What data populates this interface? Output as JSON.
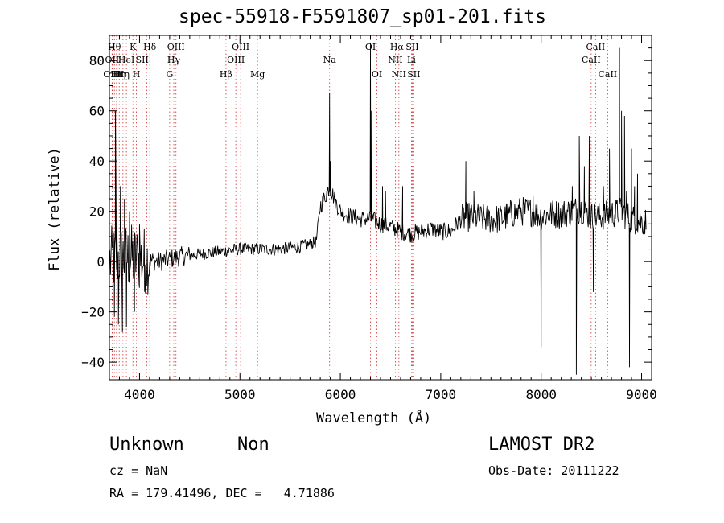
{
  "chart_data": {
    "type": "line",
    "title": "spec-55918-F5591807_sp01-201.fits",
    "xlabel": "Wavelength (Å)",
    "ylabel": "Flux (relative)",
    "xlim": [
      3700,
      9100
    ],
    "ylim": [
      -47,
      90
    ],
    "xticks": [
      "4000",
      "5000",
      "6000",
      "7000",
      "8000",
      "9000"
    ],
    "yticks": [
      "−40",
      "−20",
      "0",
      "20",
      "40",
      "60",
      "80"
    ],
    "grid": false,
    "lines": [
      {
        "w": 3727,
        "label": "OII",
        "row": 1
      },
      {
        "w": 3727,
        "label": "OIII",
        "row": 2
      },
      {
        "w": 3750,
        "label": "Hθ",
        "row": 0
      },
      {
        "w": 3771,
        "label": "Hι",
        "row": 2
      },
      {
        "w": 3798,
        "label": "Hη",
        "row": 2
      },
      {
        "w": 3835,
        "label": "Hη",
        "row": 2
      },
      {
        "w": 3869,
        "label": "HeI",
        "row": 1
      },
      {
        "w": 3934,
        "label": "K",
        "row": 0
      },
      {
        "w": 3969,
        "label": "H",
        "row": 2
      },
      {
        "w": 4026,
        "label": "SII",
        "row": 1
      },
      {
        "w": 4072,
        "label": "",
        "row": 1
      },
      {
        "w": 4102,
        "label": "Hδ",
        "row": 0
      },
      {
        "w": 4300,
        "label": "G",
        "row": 2
      },
      {
        "w": 4341,
        "label": "Hγ",
        "row": 1
      },
      {
        "w": 4363,
        "label": "OIII",
        "row": 0
      },
      {
        "w": 4861,
        "label": "Hβ",
        "row": 2
      },
      {
        "w": 4959,
        "label": "OIII",
        "row": 1
      },
      {
        "w": 5007,
        "label": "OIII",
        "row": 0
      },
      {
        "w": 5175,
        "label": "Mg",
        "row": 2
      },
      {
        "w": 5893,
        "label": "Na",
        "row": 1
      },
      {
        "w": 6300,
        "label": "OI",
        "row": 0
      },
      {
        "w": 6364,
        "label": "OI",
        "row": 2
      },
      {
        "w": 6548,
        "label": "NII",
        "row": 1
      },
      {
        "w": 6563,
        "label": "Hα",
        "row": 0
      },
      {
        "w": 6583,
        "label": "NII",
        "row": 2
      },
      {
        "w": 6708,
        "label": "Li",
        "row": 1
      },
      {
        "w": 6716,
        "label": "SII",
        "row": 0
      },
      {
        "w": 6731,
        "label": "SII",
        "row": 2
      },
      {
        "w": 8498,
        "label": "CaII",
        "row": 1
      },
      {
        "w": 8542,
        "label": "CaII",
        "row": 0
      },
      {
        "w": 8662,
        "label": "CaII",
        "row": 2
      }
    ],
    "spectrum_anchors": [
      [
        3700,
        0
      ],
      [
        3800,
        2
      ],
      [
        4000,
        1
      ],
      [
        4200,
        0
      ],
      [
        4400,
        2
      ],
      [
        4600,
        3
      ],
      [
        4800,
        4
      ],
      [
        5000,
        5
      ],
      [
        5200,
        5
      ],
      [
        5400,
        5
      ],
      [
        5600,
        6
      ],
      [
        5700,
        7
      ],
      [
        5760,
        8
      ],
      [
        5800,
        22
      ],
      [
        5850,
        26
      ],
      [
        5893,
        30
      ],
      [
        5950,
        24
      ],
      [
        6000,
        20
      ],
      [
        6100,
        18
      ],
      [
        6200,
        17
      ],
      [
        6300,
        17
      ],
      [
        6400,
        15
      ],
      [
        6500,
        14
      ],
      [
        6600,
        12
      ],
      [
        6700,
        11
      ],
      [
        6800,
        12
      ],
      [
        6900,
        13
      ],
      [
        7000,
        12
      ],
      [
        7100,
        12
      ],
      [
        7200,
        17
      ],
      [
        7300,
        18
      ],
      [
        7400,
        17
      ],
      [
        7500,
        17
      ],
      [
        7600,
        17
      ],
      [
        7700,
        19
      ],
      [
        7800,
        20
      ],
      [
        7900,
        20
      ],
      [
        8000,
        18
      ],
      [
        8100,
        19
      ],
      [
        8200,
        19
      ],
      [
        8300,
        20
      ],
      [
        8400,
        21
      ],
      [
        8500,
        18
      ],
      [
        8600,
        18
      ],
      [
        8700,
        19
      ],
      [
        8800,
        20
      ],
      [
        8900,
        17
      ],
      [
        9000,
        16
      ],
      [
        9050,
        16
      ]
    ],
    "spikes": [
      [
        3750,
        -22
      ],
      [
        3760,
        60
      ],
      [
        3775,
        66
      ],
      [
        3790,
        -25
      ],
      [
        3810,
        30
      ],
      [
        3830,
        -28
      ],
      [
        3850,
        25
      ],
      [
        3870,
        -26
      ],
      [
        3900,
        20
      ],
      [
        3950,
        -20
      ],
      [
        4000,
        15
      ],
      [
        4050,
        -12
      ],
      [
        5893,
        67
      ],
      [
        5900,
        40
      ],
      [
        6300,
        87
      ],
      [
        6310,
        60
      ],
      [
        6420,
        30
      ],
      [
        6450,
        28
      ],
      [
        6620,
        30
      ],
      [
        7250,
        40
      ],
      [
        7330,
        28
      ],
      [
        7920,
        26
      ],
      [
        8000,
        -34
      ],
      [
        8310,
        30
      ],
      [
        8350,
        -45
      ],
      [
        8380,
        50
      ],
      [
        8430,
        38
      ],
      [
        8480,
        50
      ],
      [
        8520,
        -12
      ],
      [
        8620,
        30
      ],
      [
        8680,
        45
      ],
      [
        8780,
        85
      ],
      [
        8800,
        60
      ],
      [
        8830,
        58
      ],
      [
        8850,
        28
      ],
      [
        8880,
        -42
      ],
      [
        8900,
        45
      ],
      [
        8930,
        30
      ],
      [
        8960,
        35
      ]
    ]
  },
  "info": {
    "class": "Unknown",
    "subclass": "Non",
    "survey": "LAMOST DR2",
    "cz": "cz = NaN",
    "obsdate": "Obs-Date: 20111222",
    "radec": "RA = 179.41496, DEC =   4.71886"
  }
}
